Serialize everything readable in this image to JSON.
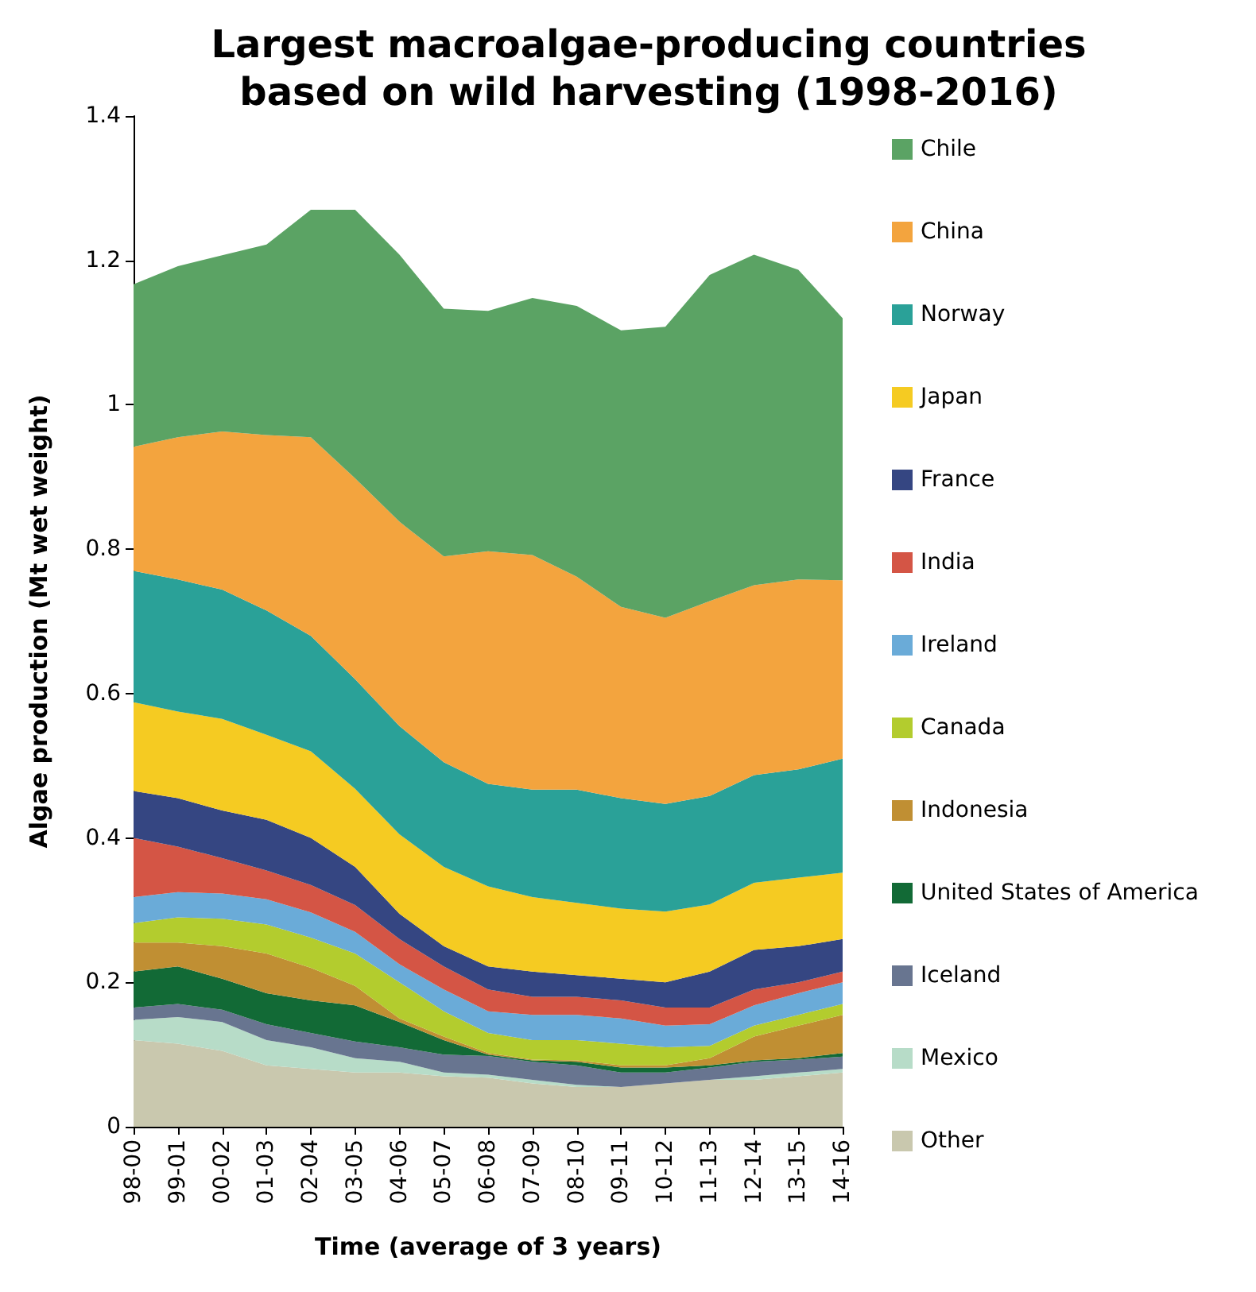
{
  "chart_data": {
    "type": "area",
    "title": "Largest macroalgae-producing countries\nbased on wild harvesting (1998-2016)",
    "xlabel": "Time (average of 3 years)",
    "ylabel": "Algae production (Mt wet weight)",
    "categories": [
      "98-00",
      "99-01",
      "00-02",
      "01-03",
      "02-04",
      "03-05",
      "04-06",
      "05-07",
      "06-08",
      "07-09",
      "08-10",
      "09-11",
      "10-12",
      "11-13",
      "12-14",
      "13-15",
      "14-16"
    ],
    "stacked": true,
    "ylim": [
      0,
      1.4
    ],
    "yticks": [
      0,
      0.2,
      0.4,
      0.6,
      0.8,
      1,
      1.2,
      1.4
    ],
    "grid": false,
    "legend": "right",
    "marker": "none",
    "series": [
      {
        "name": "Other",
        "color": "#c9c8ae",
        "values": [
          0.12,
          0.115,
          0.105,
          0.085,
          0.08,
          0.075,
          0.075,
          0.07,
          0.068,
          0.06,
          0.055,
          0.055,
          0.06,
          0.065,
          0.065,
          0.07,
          0.075
        ]
      },
      {
        "name": "Mexico",
        "color": "#b7dcc8",
        "values": [
          0.028,
          0.037,
          0.04,
          0.035,
          0.03,
          0.02,
          0.015,
          0.005,
          0.004,
          0.005,
          0.003,
          0,
          0,
          0,
          0.005,
          0.005,
          0.005
        ]
      },
      {
        "name": "Iceland",
        "color": "#687590",
        "values": [
          0.017,
          0.018,
          0.017,
          0.022,
          0.02,
          0.023,
          0.02,
          0.025,
          0.026,
          0.025,
          0.027,
          0.02,
          0.015,
          0.017,
          0.02,
          0.018,
          0.017
        ]
      },
      {
        "name": "United States of America",
        "color": "#126a36",
        "values": [
          0.05,
          0.052,
          0.043,
          0.043,
          0.045,
          0.05,
          0.035,
          0.02,
          0.002,
          0.002,
          0.005,
          0.007,
          0.007,
          0.003,
          0.002,
          0.002,
          0.005
        ]
      },
      {
        "name": "Indonesia",
        "color": "#c08f33",
        "values": [
          0.04,
          0.033,
          0.045,
          0.055,
          0.045,
          0.027,
          0.005,
          0.005,
          0.002,
          0.001,
          0.002,
          0.003,
          0.003,
          0.01,
          0.033,
          0.045,
          0.053
        ]
      },
      {
        "name": "Canada",
        "color": "#b3cc2e",
        "values": [
          0.027,
          0.035,
          0.038,
          0.04,
          0.042,
          0.045,
          0.05,
          0.035,
          0.028,
          0.027,
          0.028,
          0.03,
          0.025,
          0.017,
          0.015,
          0.015,
          0.015
        ]
      },
      {
        "name": "Ireland",
        "color": "#6aabd8",
        "values": [
          0.036,
          0.035,
          0.035,
          0.035,
          0.035,
          0.03,
          0.025,
          0.03,
          0.03,
          0.035,
          0.035,
          0.035,
          0.03,
          0.03,
          0.028,
          0.03,
          0.03
        ]
      },
      {
        "name": "India",
        "color": "#d45545",
        "values": [
          0.082,
          0.063,
          0.049,
          0.04,
          0.038,
          0.037,
          0.035,
          0.032,
          0.03,
          0.025,
          0.025,
          0.025,
          0.025,
          0.023,
          0.022,
          0.015,
          0.015
        ]
      },
      {
        "name": "France",
        "color": "#354682",
        "values": [
          0.065,
          0.067,
          0.066,
          0.07,
          0.065,
          0.053,
          0.035,
          0.028,
          0.032,
          0.035,
          0.03,
          0.03,
          0.035,
          0.05,
          0.055,
          0.05,
          0.045
        ]
      },
      {
        "name": "Japan",
        "color": "#f5cb22",
        "values": [
          0.123,
          0.12,
          0.127,
          0.118,
          0.12,
          0.108,
          0.11,
          0.11,
          0.111,
          0.103,
          0.1,
          0.097,
          0.098,
          0.093,
          0.093,
          0.095,
          0.092
        ]
      },
      {
        "name": "Norway",
        "color": "#2aa198",
        "values": [
          0.182,
          0.183,
          0.179,
          0.172,
          0.16,
          0.152,
          0.15,
          0.145,
          0.142,
          0.149,
          0.157,
          0.153,
          0.149,
          0.15,
          0.149,
          0.15,
          0.158
        ]
      },
      {
        "name": "China",
        "color": "#f3a43e",
        "values": [
          0.172,
          0.197,
          0.219,
          0.243,
          0.275,
          0.278,
          0.283,
          0.285,
          0.322,
          0.325,
          0.295,
          0.265,
          0.258,
          0.27,
          0.263,
          0.263,
          0.247
        ]
      },
      {
        "name": "Chile",
        "color": "#5ba364",
        "values": [
          0.225,
          0.237,
          0.244,
          0.264,
          0.315,
          0.372,
          0.37,
          0.343,
          0.333,
          0.356,
          0.375,
          0.383,
          0.403,
          0.452,
          0.458,
          0.429,
          0.363
        ]
      }
    ]
  }
}
